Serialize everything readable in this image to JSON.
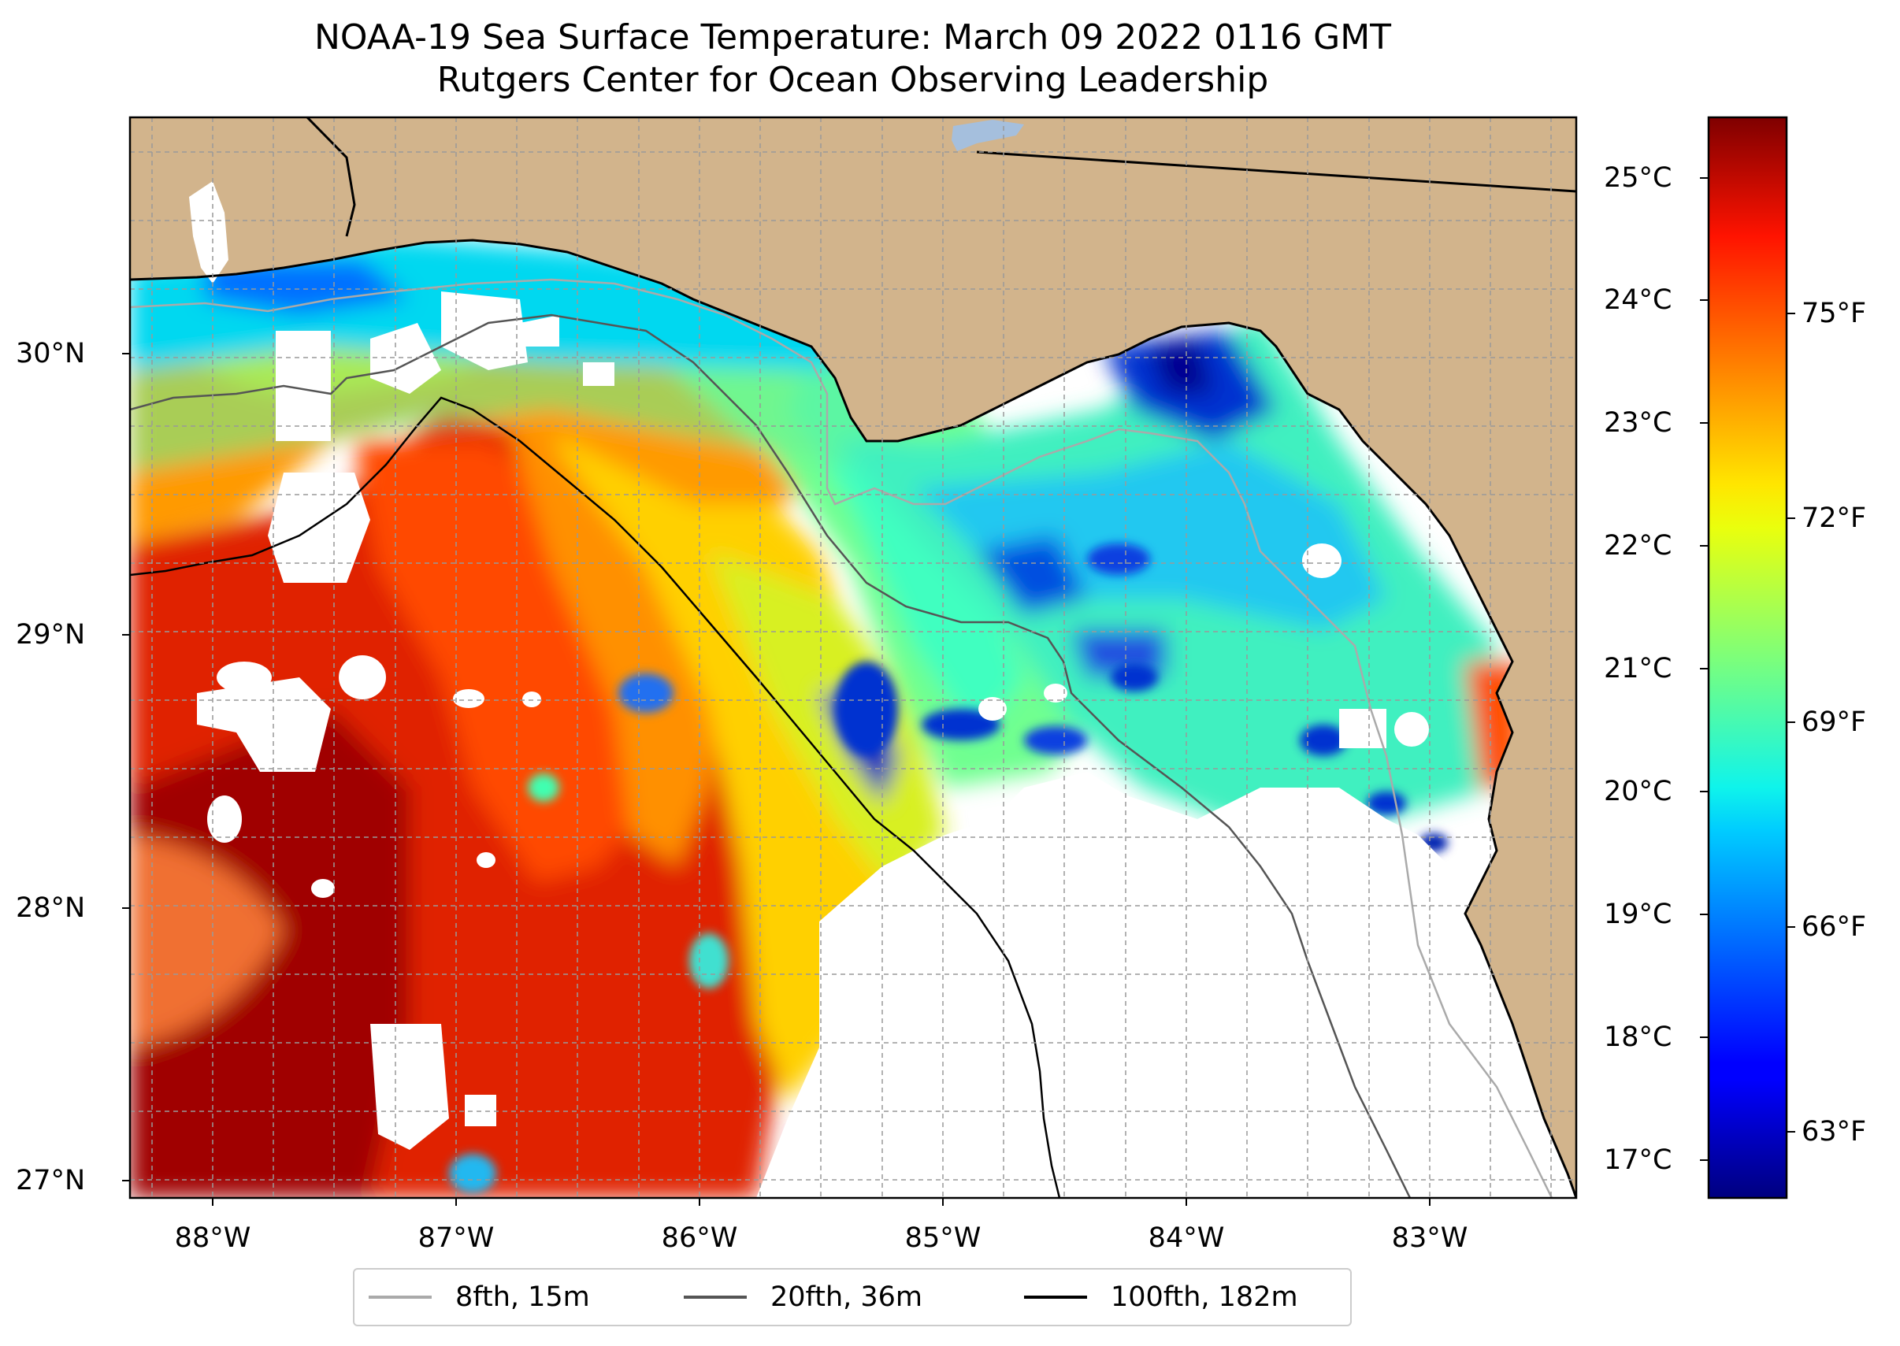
{
  "title": {
    "line1": "NOAA-19 Sea Surface Temperature: March 09 2022 0116 GMT",
    "line2": "Rutgers Center for Ocean Observing Leadership"
  },
  "map": {
    "lon_range": [
      -88.33,
      -82.4
    ],
    "lat_range": [
      26.94,
      30.87
    ],
    "x_ticks": [
      "88°W",
      "87°W",
      "86°W",
      "85°W",
      "84°W",
      "83°W"
    ],
    "x_tick_values": [
      -88,
      -87,
      -86,
      -85,
      -84,
      -83
    ],
    "y_ticks": [
      "30°N",
      "29°N",
      "28°N",
      "27°N"
    ],
    "y_tick_values": [
      30,
      29,
      28,
      27
    ],
    "gridlines": true,
    "land_color": "#d2b48c",
    "no_data_color": "#ffffff"
  },
  "colorbar": {
    "colormap": "jet",
    "celsius_ticks": [
      "25°C",
      "24°C",
      "23°C",
      "22°C",
      "21°C",
      "20°C",
      "19°C",
      "18°C",
      "17°C"
    ],
    "celsius_values": [
      25,
      24,
      23,
      22,
      21,
      20,
      19,
      18,
      17
    ],
    "fahrenheit_ticks": [
      "75°F",
      "72°F",
      "69°F",
      "66°F",
      "63°F"
    ],
    "fahrenheit_values": [
      75,
      72,
      69,
      66,
      63
    ],
    "range_c": [
      16.7,
      25.5
    ]
  },
  "legend": {
    "items": [
      {
        "label": "8fth, 15m",
        "color": "#aaaaaa"
      },
      {
        "label": "20fth, 36m",
        "color": "#555555"
      },
      {
        "label": "100fth, 182m",
        "color": "#000000"
      }
    ]
  }
}
